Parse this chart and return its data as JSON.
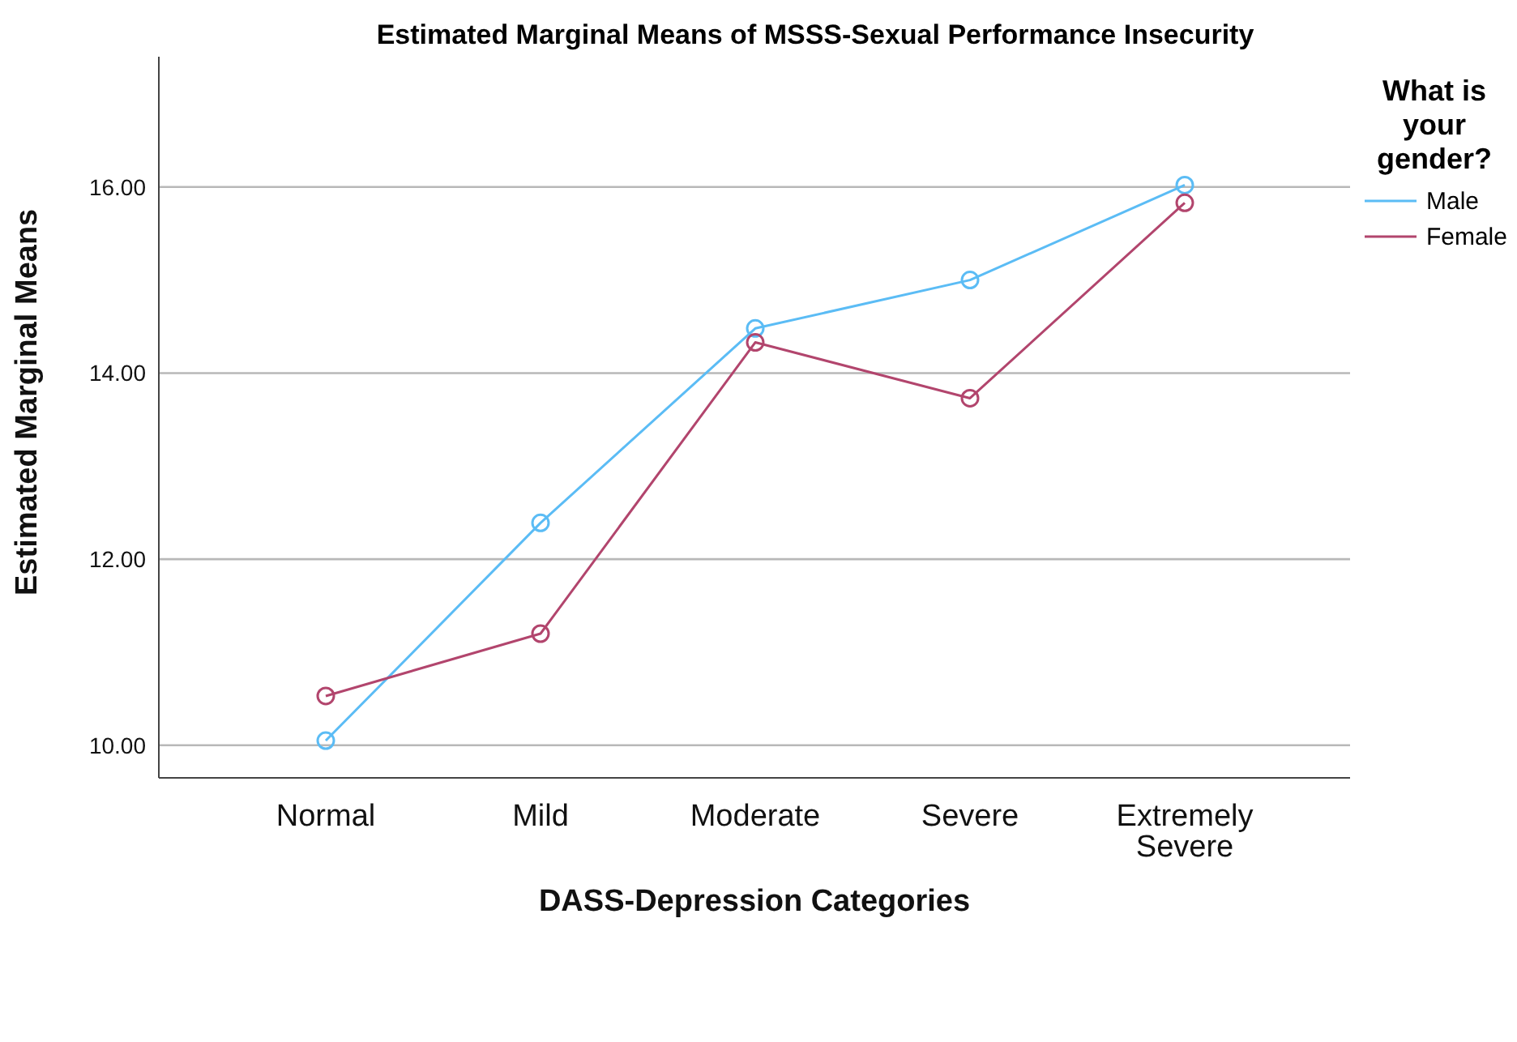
{
  "chart_data": {
    "type": "line",
    "title": "Estimated Marginal Means of MSSS-Sexual Performance Insecurity",
    "xlabel": "DASS-Depression Categories",
    "ylabel": "Estimated Marginal Means",
    "legend_title": "What is your gender?",
    "categories": [
      "Normal",
      "Mild",
      "Moderate",
      "Severe",
      "Extremely Severe"
    ],
    "series": [
      {
        "name": "Male",
        "color": "#5bbcf5",
        "values": [
          10.05,
          12.39,
          14.48,
          15.0,
          16.02
        ]
      },
      {
        "name": "Female",
        "color": "#b2456d",
        "values": [
          10.53,
          11.2,
          14.33,
          13.73,
          15.83
        ]
      }
    ],
    "ylim": [
      9.65,
      17.4
    ],
    "yticks": [
      {
        "value": 10,
        "label": "10.00"
      },
      {
        "value": 12,
        "label": "12.00"
      },
      {
        "value": 14,
        "label": "14.00"
      },
      {
        "value": 16,
        "label": "16.00"
      }
    ],
    "grid": "y",
    "legend": "right",
    "marker": "circle",
    "line_style": "solid"
  }
}
